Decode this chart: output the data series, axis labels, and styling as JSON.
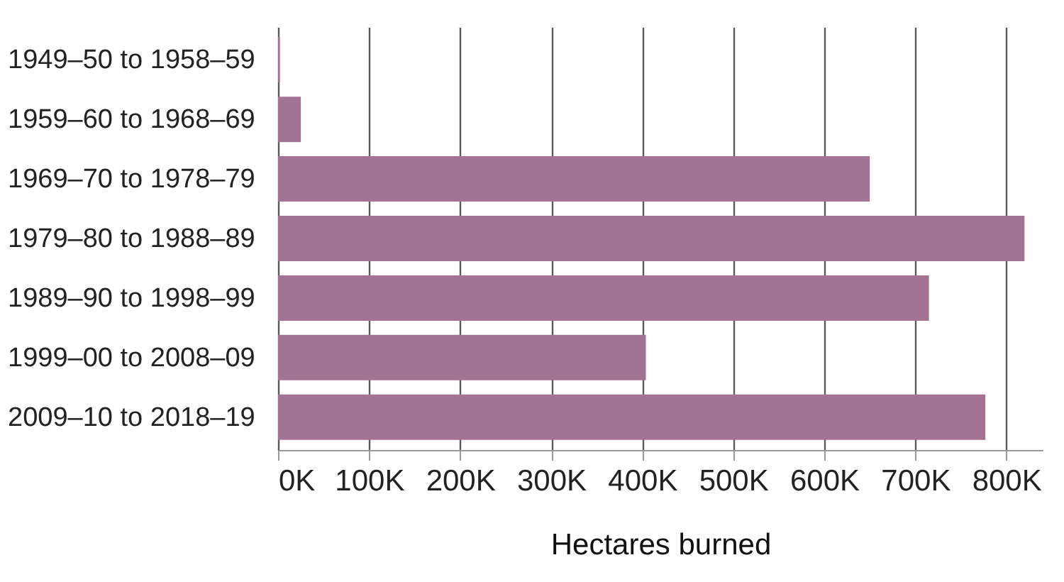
{
  "chart_data": {
    "type": "bar",
    "orientation": "horizontal",
    "xlabel": "Hectares burned",
    "categories": [
      "1949–50 to 1958–59",
      "1959–60 to 1968–69",
      "1969–70 to 1978–79",
      "1979–80 to 1988–89",
      "1989–90 to 1998–99",
      "1999–00 to 2008–09",
      "2009–10 to 2018–19"
    ],
    "values": [
      2000,
      25000,
      650000,
      820000,
      715000,
      404000,
      777000
    ],
    "color": "#a37393",
    "xlim": [
      0,
      840000
    ],
    "xticks": [
      {
        "value": 0,
        "label": "0K"
      },
      {
        "value": 100000,
        "label": "100K"
      },
      {
        "value": 200000,
        "label": "200K"
      },
      {
        "value": 300000,
        "label": "300K"
      },
      {
        "value": 400000,
        "label": "400K"
      },
      {
        "value": 500000,
        "label": "500K"
      },
      {
        "value": 600000,
        "label": "600K"
      },
      {
        "value": 700000,
        "label": "700K"
      },
      {
        "value": 800000,
        "label": "800K"
      }
    ],
    "grid": "x"
  }
}
